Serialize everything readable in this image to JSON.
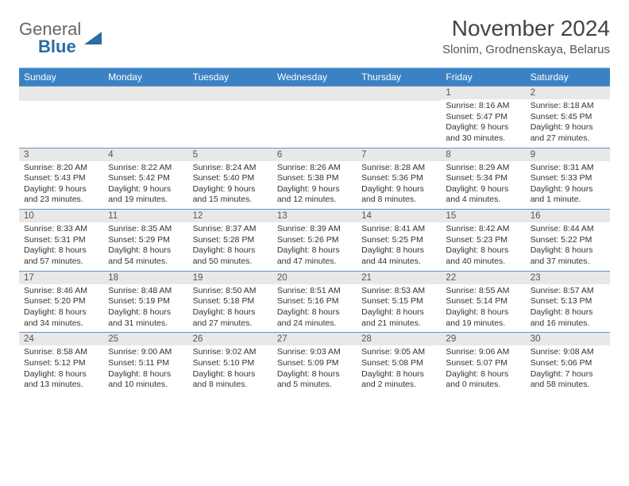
{
  "logo": {
    "general": "General",
    "blue": "Blue"
  },
  "title": "November 2024",
  "location": "Slonim, Grodnenskaya, Belarus",
  "colors": {
    "header_bg": "#3b82c4",
    "header_text": "#ffffff",
    "daynum_bg": "#e8e8e8",
    "border": "#6b93b8",
    "logo_blue": "#2b6ca3",
    "logo_gray": "#666666"
  },
  "weekdays": [
    "Sunday",
    "Monday",
    "Tuesday",
    "Wednesday",
    "Thursday",
    "Friday",
    "Saturday"
  ],
  "weeks": [
    [
      {
        "empty": true
      },
      {
        "empty": true
      },
      {
        "empty": true
      },
      {
        "empty": true
      },
      {
        "empty": true
      },
      {
        "day": "1",
        "sunrise": "Sunrise: 8:16 AM",
        "sunset": "Sunset: 5:47 PM",
        "daylight": "Daylight: 9 hours and 30 minutes."
      },
      {
        "day": "2",
        "sunrise": "Sunrise: 8:18 AM",
        "sunset": "Sunset: 5:45 PM",
        "daylight": "Daylight: 9 hours and 27 minutes."
      }
    ],
    [
      {
        "day": "3",
        "sunrise": "Sunrise: 8:20 AM",
        "sunset": "Sunset: 5:43 PM",
        "daylight": "Daylight: 9 hours and 23 minutes."
      },
      {
        "day": "4",
        "sunrise": "Sunrise: 8:22 AM",
        "sunset": "Sunset: 5:42 PM",
        "daylight": "Daylight: 9 hours and 19 minutes."
      },
      {
        "day": "5",
        "sunrise": "Sunrise: 8:24 AM",
        "sunset": "Sunset: 5:40 PM",
        "daylight": "Daylight: 9 hours and 15 minutes."
      },
      {
        "day": "6",
        "sunrise": "Sunrise: 8:26 AM",
        "sunset": "Sunset: 5:38 PM",
        "daylight": "Daylight: 9 hours and 12 minutes."
      },
      {
        "day": "7",
        "sunrise": "Sunrise: 8:28 AM",
        "sunset": "Sunset: 5:36 PM",
        "daylight": "Daylight: 9 hours and 8 minutes."
      },
      {
        "day": "8",
        "sunrise": "Sunrise: 8:29 AM",
        "sunset": "Sunset: 5:34 PM",
        "daylight": "Daylight: 9 hours and 4 minutes."
      },
      {
        "day": "9",
        "sunrise": "Sunrise: 8:31 AM",
        "sunset": "Sunset: 5:33 PM",
        "daylight": "Daylight: 9 hours and 1 minute."
      }
    ],
    [
      {
        "day": "10",
        "sunrise": "Sunrise: 8:33 AM",
        "sunset": "Sunset: 5:31 PM",
        "daylight": "Daylight: 8 hours and 57 minutes."
      },
      {
        "day": "11",
        "sunrise": "Sunrise: 8:35 AM",
        "sunset": "Sunset: 5:29 PM",
        "daylight": "Daylight: 8 hours and 54 minutes."
      },
      {
        "day": "12",
        "sunrise": "Sunrise: 8:37 AM",
        "sunset": "Sunset: 5:28 PM",
        "daylight": "Daylight: 8 hours and 50 minutes."
      },
      {
        "day": "13",
        "sunrise": "Sunrise: 8:39 AM",
        "sunset": "Sunset: 5:26 PM",
        "daylight": "Daylight: 8 hours and 47 minutes."
      },
      {
        "day": "14",
        "sunrise": "Sunrise: 8:41 AM",
        "sunset": "Sunset: 5:25 PM",
        "daylight": "Daylight: 8 hours and 44 minutes."
      },
      {
        "day": "15",
        "sunrise": "Sunrise: 8:42 AM",
        "sunset": "Sunset: 5:23 PM",
        "daylight": "Daylight: 8 hours and 40 minutes."
      },
      {
        "day": "16",
        "sunrise": "Sunrise: 8:44 AM",
        "sunset": "Sunset: 5:22 PM",
        "daylight": "Daylight: 8 hours and 37 minutes."
      }
    ],
    [
      {
        "day": "17",
        "sunrise": "Sunrise: 8:46 AM",
        "sunset": "Sunset: 5:20 PM",
        "daylight": "Daylight: 8 hours and 34 minutes."
      },
      {
        "day": "18",
        "sunrise": "Sunrise: 8:48 AM",
        "sunset": "Sunset: 5:19 PM",
        "daylight": "Daylight: 8 hours and 31 minutes."
      },
      {
        "day": "19",
        "sunrise": "Sunrise: 8:50 AM",
        "sunset": "Sunset: 5:18 PM",
        "daylight": "Daylight: 8 hours and 27 minutes."
      },
      {
        "day": "20",
        "sunrise": "Sunrise: 8:51 AM",
        "sunset": "Sunset: 5:16 PM",
        "daylight": "Daylight: 8 hours and 24 minutes."
      },
      {
        "day": "21",
        "sunrise": "Sunrise: 8:53 AM",
        "sunset": "Sunset: 5:15 PM",
        "daylight": "Daylight: 8 hours and 21 minutes."
      },
      {
        "day": "22",
        "sunrise": "Sunrise: 8:55 AM",
        "sunset": "Sunset: 5:14 PM",
        "daylight": "Daylight: 8 hours and 19 minutes."
      },
      {
        "day": "23",
        "sunrise": "Sunrise: 8:57 AM",
        "sunset": "Sunset: 5:13 PM",
        "daylight": "Daylight: 8 hours and 16 minutes."
      }
    ],
    [
      {
        "day": "24",
        "sunrise": "Sunrise: 8:58 AM",
        "sunset": "Sunset: 5:12 PM",
        "daylight": "Daylight: 8 hours and 13 minutes."
      },
      {
        "day": "25",
        "sunrise": "Sunrise: 9:00 AM",
        "sunset": "Sunset: 5:11 PM",
        "daylight": "Daylight: 8 hours and 10 minutes."
      },
      {
        "day": "26",
        "sunrise": "Sunrise: 9:02 AM",
        "sunset": "Sunset: 5:10 PM",
        "daylight": "Daylight: 8 hours and 8 minutes."
      },
      {
        "day": "27",
        "sunrise": "Sunrise: 9:03 AM",
        "sunset": "Sunset: 5:09 PM",
        "daylight": "Daylight: 8 hours and 5 minutes."
      },
      {
        "day": "28",
        "sunrise": "Sunrise: 9:05 AM",
        "sunset": "Sunset: 5:08 PM",
        "daylight": "Daylight: 8 hours and 2 minutes."
      },
      {
        "day": "29",
        "sunrise": "Sunrise: 9:06 AM",
        "sunset": "Sunset: 5:07 PM",
        "daylight": "Daylight: 8 hours and 0 minutes."
      },
      {
        "day": "30",
        "sunrise": "Sunrise: 9:08 AM",
        "sunset": "Sunset: 5:06 PM",
        "daylight": "Daylight: 7 hours and 58 minutes."
      }
    ]
  ]
}
